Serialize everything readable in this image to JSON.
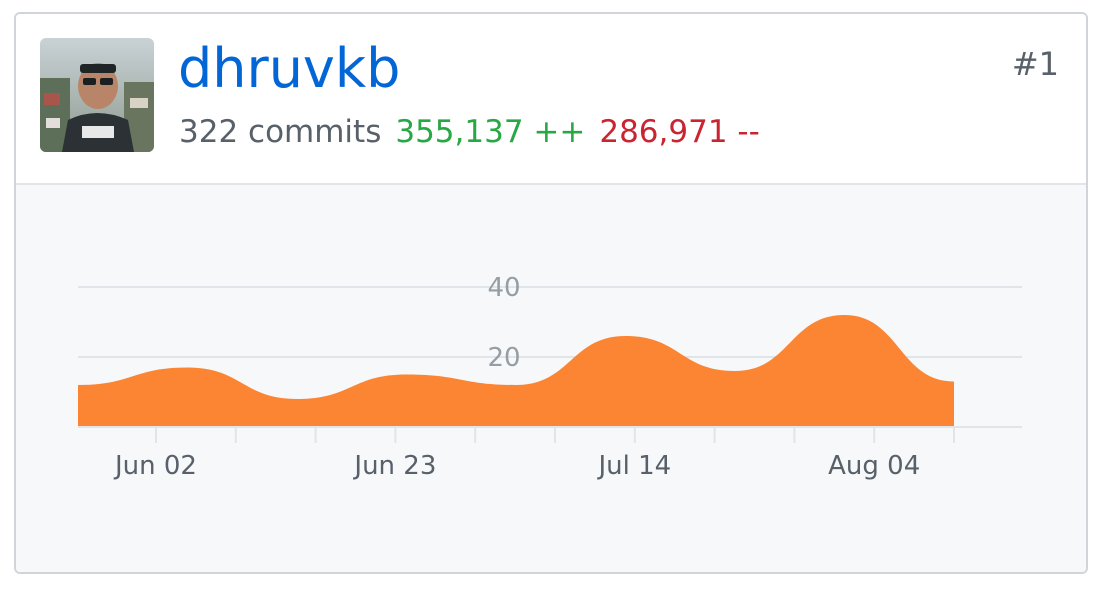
{
  "contributor": {
    "username": "dhruvkb",
    "rank": "#1",
    "commits": "322 commits",
    "additions": "355,137 ++",
    "deletions": "286,971 --"
  },
  "colors": {
    "username": "#0366d6",
    "additions": "#28a745",
    "deletions": "#cb2431",
    "area_fill": "#fb8532"
  },
  "chart_data": {
    "type": "area",
    "x_tick_labels": [
      "Jun 02",
      "Jun 23",
      "Jul 14",
      "Aug 04"
    ],
    "y_tick_labels": [
      "40",
      "20"
    ],
    "ylim": [
      0,
      40
    ],
    "grid": true,
    "series": [
      {
        "values": [
          12,
          17,
          8,
          15,
          12,
          26,
          16,
          32,
          13
        ]
      }
    ]
  }
}
